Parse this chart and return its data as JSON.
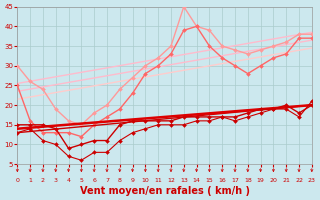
{
  "background_color": "#cce8ee",
  "grid_color": "#aacccc",
  "xlabel": "Vent moyen/en rafales ( km/h )",
  "xlabel_color": "#cc0000",
  "xlabel_fontsize": 7,
  "xtick_color": "#cc0000",
  "ytick_color": "#cc0000",
  "xmin": 0,
  "xmax": 23,
  "ymin": 5,
  "ymax": 45,
  "yticks": [
    5,
    10,
    15,
    20,
    25,
    30,
    35,
    40,
    45
  ],
  "xticks": [
    0,
    1,
    2,
    3,
    4,
    5,
    6,
    7,
    8,
    9,
    10,
    11,
    12,
    13,
    14,
    15,
    16,
    17,
    18,
    19,
    20,
    21,
    22,
    23
  ],
  "arrow_color": "#cc0000",
  "lines": [
    {
      "x": [
        0,
        23
      ],
      "y": [
        25.5,
        38.5
      ],
      "color": "#ffbbcc",
      "lw": 1.0,
      "marker": null,
      "ms": 0,
      "zorder": 2
    },
    {
      "x": [
        0,
        23
      ],
      "y": [
        23.5,
        36.5
      ],
      "color": "#ffbbcc",
      "lw": 1.0,
      "marker": null,
      "ms": 0,
      "zorder": 2
    },
    {
      "x": [
        0,
        23
      ],
      "y": [
        21.5,
        34.5
      ],
      "color": "#ffcccc",
      "lw": 1.0,
      "marker": null,
      "ms": 0,
      "zorder": 2
    },
    {
      "x": [
        0,
        1,
        2,
        3,
        4,
        5,
        6,
        7,
        8,
        9,
        10,
        11,
        12,
        13,
        14,
        15,
        16,
        17,
        18,
        19,
        20,
        21,
        22,
        23
      ],
      "y": [
        30,
        26,
        24,
        19,
        16,
        15,
        18,
        20,
        24,
        27,
        30,
        32,
        35,
        45,
        40,
        39,
        35,
        34,
        33,
        34,
        35,
        36,
        38,
        38
      ],
      "color": "#ff9999",
      "lw": 1.0,
      "marker": "D",
      "ms": 2.0,
      "zorder": 3
    },
    {
      "x": [
        0,
        1,
        2,
        3,
        4,
        5,
        6,
        7,
        8,
        9,
        10,
        11,
        12,
        13,
        14,
        15,
        16,
        17,
        18,
        19,
        20,
        21,
        22,
        23
      ],
      "y": [
        25,
        16,
        13,
        13,
        13,
        12,
        15,
        17,
        19,
        23,
        28,
        30,
        33,
        39,
        40,
        35,
        32,
        30,
        28,
        30,
        32,
        33,
        37,
        37
      ],
      "color": "#ff6666",
      "lw": 1.0,
      "marker": "D",
      "ms": 2.0,
      "zorder": 3
    },
    {
      "x": [
        0,
        23
      ],
      "y": [
        14,
        20
      ],
      "color": "#dd0000",
      "lw": 1.8,
      "marker": null,
      "ms": 0,
      "zorder": 4
    },
    {
      "x": [
        0,
        1,
        2,
        3,
        4,
        5,
        6,
        7,
        8,
        9,
        10,
        11,
        12,
        13,
        14,
        15,
        16,
        17,
        18,
        19,
        20,
        21,
        22,
        23
      ],
      "y": [
        13,
        14,
        11,
        10,
        7,
        6,
        8,
        8,
        11,
        13,
        14,
        15,
        15,
        15,
        16,
        16,
        17,
        16,
        17,
        18,
        19,
        19,
        17,
        21
      ],
      "color": "#cc0000",
      "lw": 0.8,
      "marker": "D",
      "ms": 2.0,
      "zorder": 4
    },
    {
      "x": [
        0,
        1,
        2,
        3,
        4,
        5,
        6,
        7,
        8,
        9,
        10,
        11,
        12,
        13,
        14,
        15,
        16,
        17,
        18,
        19,
        20,
        21,
        22,
        23
      ],
      "y": [
        15,
        15,
        15,
        14,
        9,
        10,
        11,
        11,
        15,
        16,
        16,
        16,
        16,
        17,
        17,
        17,
        17,
        17,
        18,
        19,
        19,
        20,
        18,
        20
      ],
      "color": "#cc0000",
      "lw": 1.0,
      "marker": "D",
      "ms": 2.0,
      "zorder": 4
    },
    {
      "x": [
        0,
        23
      ],
      "y": [
        13,
        20
      ],
      "color": "#cc0000",
      "lw": 1.0,
      "marker": null,
      "ms": 0,
      "zorder": 3
    }
  ],
  "arrows_x": [
    0,
    1,
    2,
    3,
    4,
    5,
    6,
    7,
    8,
    9,
    10,
    11,
    12,
    13,
    14,
    15,
    16,
    17,
    18,
    19,
    20,
    21,
    22,
    23
  ]
}
